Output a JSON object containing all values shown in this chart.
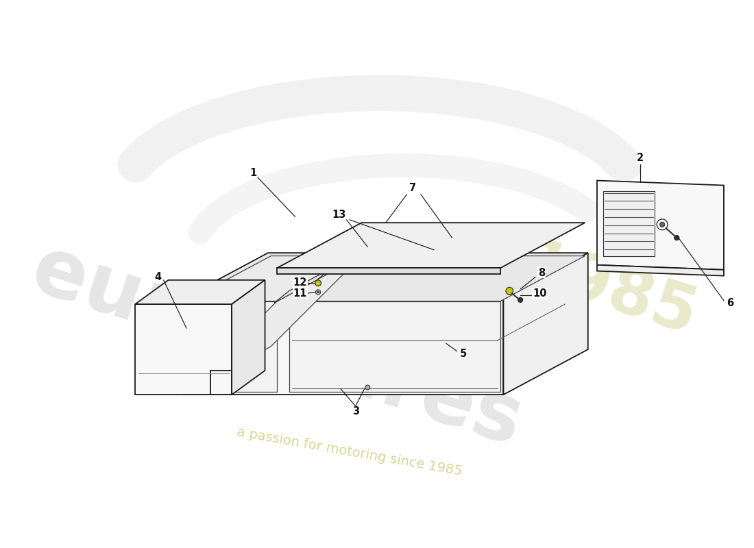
{
  "background_color": "#ffffff",
  "line_color": "#1a1a1a",
  "figsize": [
    11.0,
    8.0
  ],
  "dpi": 100,
  "watermark_eurospares": "eurospares",
  "watermark_tagline": "a passion for motoring since 1985",
  "watermark_1985": "1985",
  "part_numbers": [
    "1",
    "2",
    "3",
    "4",
    "5",
    "6",
    "7",
    "8",
    "10",
    "11",
    "12",
    "13"
  ]
}
